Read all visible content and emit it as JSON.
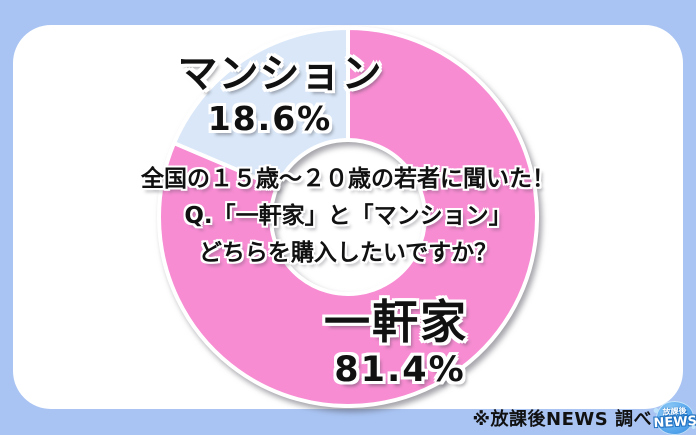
{
  "colors": {
    "background": "#a9c4f3",
    "card": "#ffffff",
    "text": "#111111",
    "slice_separator": "#ffffff"
  },
  "chart_data": {
    "type": "donut",
    "direction": "clockwise",
    "start_angle_deg": 0,
    "donut_hole_ratio": 0.41,
    "center_text_lines": [
      "全国の１５歳～２０歳の若者に聞いた！",
      "Q.「一軒家」と「マンション」",
      "どちらを購入したいですか？"
    ],
    "segments": [
      {
        "label": "一軒家",
        "value": 81.4,
        "value_label": "81.4%",
        "color": "#f78cd2"
      },
      {
        "label": "マンション",
        "value": 18.6,
        "value_label": "18.6%",
        "color": "#d9e7f8"
      }
    ]
  },
  "footer": {
    "credit": "※放課後NEWS 調べ",
    "logo_line1": "放課後",
    "logo_line2": "NEWS"
  }
}
